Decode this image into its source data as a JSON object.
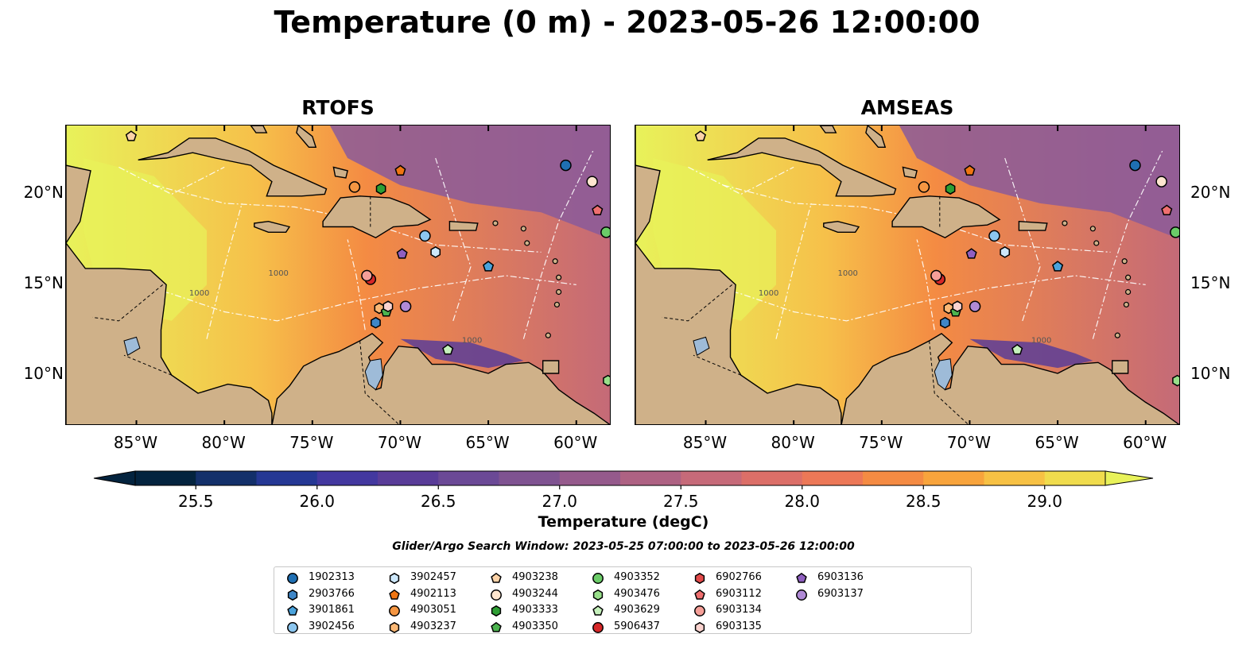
{
  "title": "Temperature (0 m) - 2023-05-26 12:00:00",
  "panels": [
    {
      "title": "RTOFS",
      "lower_left_color": "#e6f55c"
    },
    {
      "title": "AMSEAS",
      "lower_left_color": "#97b7e0"
    }
  ],
  "map": {
    "lon_ticks": [
      "85°W",
      "80°W",
      "75°W",
      "70°W",
      "65°W",
      "60°W"
    ],
    "lat_ticks": [
      "20°N",
      "15°N",
      "10°N"
    ],
    "lon_range": [
      -89,
      -58
    ],
    "lat_range": [
      7.2,
      23.8
    ],
    "bathymetry_label": "1000",
    "colors": {
      "land": "#cfb189",
      "ocean_warm": "#f48b43",
      "ocean_hot": "#e8f25a",
      "ocean_cool": "#8a5a9a",
      "inland_water": "#9ebbd8"
    }
  },
  "colorbar": {
    "label": "Temperature (degC)",
    "ticks": [
      "25.5",
      "26.0",
      "26.5",
      "27.0",
      "27.5",
      "28.0",
      "28.5",
      "29.0"
    ],
    "range": [
      25.25,
      29.25
    ],
    "colors": [
      "#03233e",
      "#13306a",
      "#253894",
      "#43389f",
      "#593c98",
      "#6b4996",
      "#7f5391",
      "#955a8c",
      "#ae6283",
      "#c66a79",
      "#dc6f68",
      "#ec7857",
      "#f48b43",
      "#f8a43c",
      "#f7c144",
      "#f0dc4d"
    ],
    "extend_low_color": "#03233e",
    "extend_high_color": "#e8f25a"
  },
  "search_window": "Glider/Argo Search Window: 2023-05-25 07:00:00 to 2023-05-26 12:00:00",
  "floats": [
    {
      "id": "1902313",
      "marker": "circle",
      "color": "#1f6fb3",
      "lon": -60.6,
      "lat": 21.6
    },
    {
      "id": "2903766",
      "marker": "hexagon",
      "color": "#3e86c7",
      "lon": -71.4,
      "lat": 12.9
    },
    {
      "id": "3901861",
      "marker": "pentagon",
      "color": "#4aa3dc",
      "lon": -65.0,
      "lat": 16.0
    },
    {
      "id": "3902456",
      "marker": "circle",
      "color": "#8cc6ef",
      "lon": -68.6,
      "lat": 17.7
    },
    {
      "id": "3902457",
      "marker": "hexagon",
      "color": "#cde8fb",
      "lon": -68.0,
      "lat": 16.8
    },
    {
      "id": "4902113",
      "marker": "pentagon",
      "color": "#ef7512",
      "lon": -70.0,
      "lat": 21.3
    },
    {
      "id": "4903051",
      "marker": "circle",
      "color": "#f59642",
      "lon": -72.6,
      "lat": 20.4
    },
    {
      "id": "4903237",
      "marker": "hexagon",
      "color": "#fbb875",
      "lon": -71.2,
      "lat": 13.7
    },
    {
      "id": "4903238",
      "marker": "pentagon",
      "color": "#fdd3a8",
      "lon": -85.3,
      "lat": 23.2
    },
    {
      "id": "4903244",
      "marker": "circle",
      "color": "#fee6cf",
      "lon": -59.1,
      "lat": 20.7
    },
    {
      "id": "4903333",
      "marker": "hexagon",
      "color": "#2e9e34",
      "lon": -71.1,
      "lat": 20.3
    },
    {
      "id": "4903350",
      "marker": "pentagon",
      "color": "#4cb34f",
      "lon": -70.8,
      "lat": 13.5
    },
    {
      "id": "4903352",
      "marker": "circle",
      "color": "#6bcc68",
      "lon": -58.3,
      "lat": 17.9
    },
    {
      "id": "4903476",
      "marker": "hexagon",
      "color": "#98df8a",
      "lon": -58.2,
      "lat": 9.7
    },
    {
      "id": "4903629",
      "marker": "pentagon",
      "color": "#c5f0bb",
      "lon": -67.3,
      "lat": 11.4
    },
    {
      "id": "5906437",
      "marker": "circle",
      "color": "#d62728",
      "lon": -71.7,
      "lat": 15.3
    },
    {
      "id": "6902766",
      "marker": "hexagon",
      "color": "#e34a4a",
      "lon": -71.9,
      "lat": 15.5
    },
    {
      "id": "6903112",
      "marker": "pentagon",
      "color": "#ef6f6f",
      "lon": -58.8,
      "lat": 19.1
    },
    {
      "id": "6903134",
      "marker": "circle",
      "color": "#f59f98",
      "lon": -71.9,
      "lat": 15.5
    },
    {
      "id": "6903135",
      "marker": "hexagon",
      "color": "#fbd3cf",
      "lon": -70.7,
      "lat": 13.8
    },
    {
      "id": "6903136",
      "marker": "pentagon",
      "color": "#8f5fc0",
      "lon": -69.9,
      "lat": 16.7
    },
    {
      "id": "6903137",
      "marker": "circle",
      "color": "#b08ad6",
      "lon": -69.7,
      "lat": 13.8
    }
  ]
}
